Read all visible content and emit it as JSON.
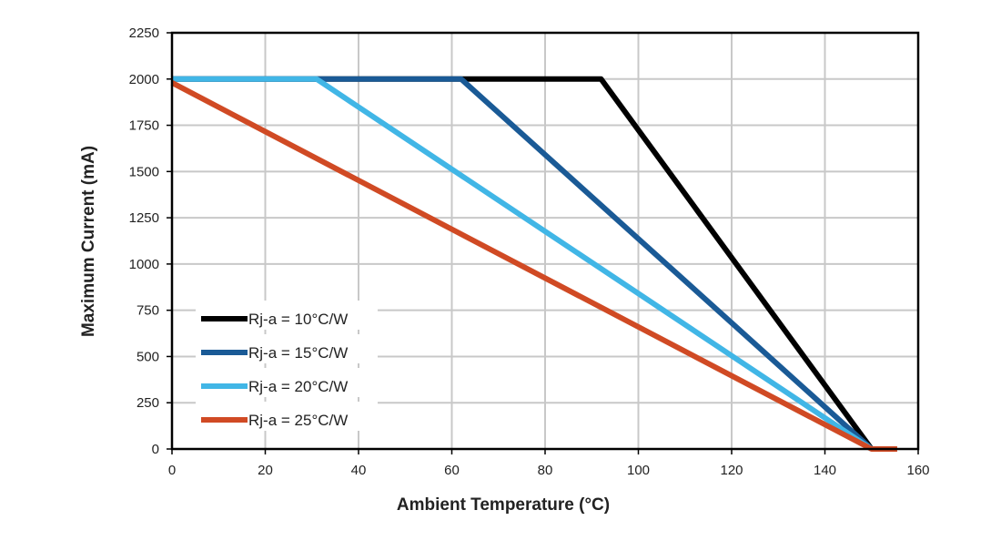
{
  "chart_data": {
    "type": "line",
    "xlabel": "Ambient Temperature (°C)",
    "ylabel": "Maximum Current (mA)",
    "xlim": [
      0,
      160
    ],
    "ylim": [
      0,
      2250
    ],
    "xticks": [
      "0",
      "20",
      "40",
      "60",
      "80",
      "100",
      "120",
      "140",
      "160"
    ],
    "yticks": [
      "0",
      "250",
      "500",
      "750",
      "1000",
      "1250",
      "1500",
      "1750",
      "2000",
      "2250"
    ],
    "grid": true,
    "legend_position": "bottom-left",
    "series": [
      {
        "name": "Rj-a = 10°C/W",
        "color": "#000000",
        "x": [
          0,
          92,
          150
        ],
        "y": [
          2000,
          2000,
          0
        ]
      },
      {
        "name": "Rj-a = 15°C/W",
        "color": "#1a5a96",
        "x": [
          0,
          62,
          150
        ],
        "y": [
          2000,
          2000,
          0
        ]
      },
      {
        "name": "Rj-a = 20°C/W",
        "color": "#41b6e6",
        "x": [
          0,
          31,
          150
        ],
        "y": [
          2000,
          2000,
          0
        ]
      },
      {
        "name": "Rj-a = 25°C/W",
        "color": "#d04a24",
        "x": [
          0,
          150,
          155.5
        ],
        "y": [
          1980,
          0,
          0
        ]
      }
    ]
  }
}
